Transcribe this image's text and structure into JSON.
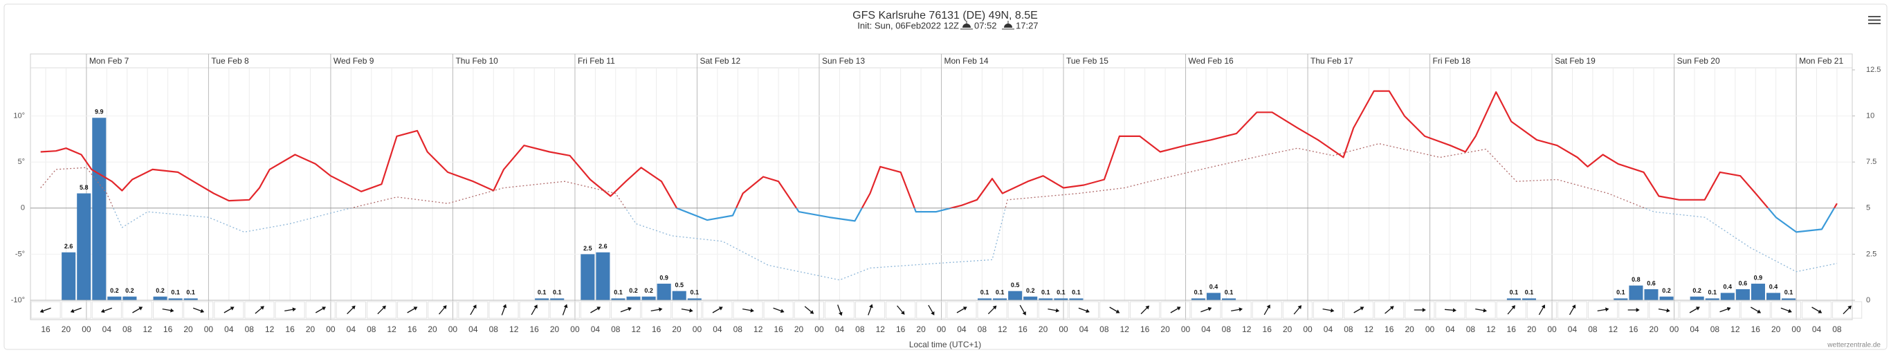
{
  "chart_data": {
    "type": "meteogram",
    "title": "GFS Karlsruhe 76131 (DE) 49N, 8.5E",
    "subtitle": "Init: Sun, 06Feb2022 12Z",
    "sunrise": "07:52",
    "sunset": "17:27",
    "x_label": "Local time (UTC+1)",
    "credit": "wetterzentrale.de",
    "xlim": [
      13,
      371
    ],
    "xticks": [
      {
        "value": 16,
        "label": "16"
      },
      {
        "value": 20,
        "label": "20"
      },
      {
        "value": 24,
        "label": "00"
      },
      {
        "value": 28,
        "label": "04"
      },
      {
        "value": 32,
        "label": "08"
      },
      {
        "value": 36,
        "label": "12"
      },
      {
        "value": 40,
        "label": "16"
      },
      {
        "value": 44,
        "label": "20"
      },
      {
        "value": 48,
        "label": "00"
      },
      {
        "value": 52,
        "label": "04"
      },
      {
        "value": 56,
        "label": "08"
      },
      {
        "value": 60,
        "label": "12"
      },
      {
        "value": 64,
        "label": "16"
      },
      {
        "value": 68,
        "label": "20"
      },
      {
        "value": 72,
        "label": "00"
      },
      {
        "value": 76,
        "label": "04"
      },
      {
        "value": 80,
        "label": "08"
      },
      {
        "value": 84,
        "label": "12"
      },
      {
        "value": 88,
        "label": "16"
      },
      {
        "value": 92,
        "label": "20"
      },
      {
        "value": 96,
        "label": "00"
      },
      {
        "value": 100,
        "label": "04"
      },
      {
        "value": 104,
        "label": "08"
      },
      {
        "value": 108,
        "label": "12"
      },
      {
        "value": 112,
        "label": "16"
      },
      {
        "value": 116,
        "label": "20"
      },
      {
        "value": 120,
        "label": "00"
      },
      {
        "value": 124,
        "label": "04"
      },
      {
        "value": 128,
        "label": "08"
      },
      {
        "value": 132,
        "label": "12"
      },
      {
        "value": 136,
        "label": "16"
      },
      {
        "value": 140,
        "label": "20"
      },
      {
        "value": 144,
        "label": "00"
      },
      {
        "value": 148,
        "label": "04"
      },
      {
        "value": 152,
        "label": "08"
      },
      {
        "value": 156,
        "label": "12"
      },
      {
        "value": 160,
        "label": "16"
      },
      {
        "value": 164,
        "label": "20"
      },
      {
        "value": 168,
        "label": "00"
      },
      {
        "value": 172,
        "label": "04"
      },
      {
        "value": 176,
        "label": "08"
      },
      {
        "value": 180,
        "label": "12"
      },
      {
        "value": 184,
        "label": "16"
      },
      {
        "value": 188,
        "label": "20"
      },
      {
        "value": 192,
        "label": "00"
      },
      {
        "value": 196,
        "label": "04"
      },
      {
        "value": 200,
        "label": "08"
      },
      {
        "value": 204,
        "label": "12"
      },
      {
        "value": 208,
        "label": "16"
      },
      {
        "value": 212,
        "label": "20"
      },
      {
        "value": 216,
        "label": "00"
      },
      {
        "value": 220,
        "label": "04"
      },
      {
        "value": 224,
        "label": "08"
      },
      {
        "value": 228,
        "label": "12"
      },
      {
        "value": 232,
        "label": "16"
      },
      {
        "value": 236,
        "label": "20"
      },
      {
        "value": 240,
        "label": "00"
      },
      {
        "value": 244,
        "label": "04"
      },
      {
        "value": 248,
        "label": "08"
      },
      {
        "value": 252,
        "label": "12"
      },
      {
        "value": 256,
        "label": "16"
      },
      {
        "value": 260,
        "label": "20"
      },
      {
        "value": 264,
        "label": "00"
      },
      {
        "value": 268,
        "label": "04"
      },
      {
        "value": 272,
        "label": "08"
      },
      {
        "value": 276,
        "label": "12"
      },
      {
        "value": 280,
        "label": "16"
      },
      {
        "value": 284,
        "label": "20"
      },
      {
        "value": 288,
        "label": "00"
      },
      {
        "value": 292,
        "label": "04"
      },
      {
        "value": 296,
        "label": "08"
      },
      {
        "value": 300,
        "label": "12"
      },
      {
        "value": 304,
        "label": "16"
      },
      {
        "value": 308,
        "label": "20"
      },
      {
        "value": 312,
        "label": "00"
      },
      {
        "value": 316,
        "label": "04"
      },
      {
        "value": 320,
        "label": "08"
      },
      {
        "value": 324,
        "label": "12"
      },
      {
        "value": 328,
        "label": "16"
      },
      {
        "value": 332,
        "label": "20"
      },
      {
        "value": 336,
        "label": "00"
      },
      {
        "value": 340,
        "label": "04"
      },
      {
        "value": 344,
        "label": "08"
      },
      {
        "value": 348,
        "label": "12"
      },
      {
        "value": 352,
        "label": "16"
      },
      {
        "value": 356,
        "label": "20"
      },
      {
        "value": 360,
        "label": "00"
      },
      {
        "value": 364,
        "label": "04"
      },
      {
        "value": 368,
        "label": "08"
      }
    ],
    "day_ticks": [
      {
        "value": 24,
        "label": "Mon Feb 7"
      },
      {
        "value": 48,
        "label": "Tue Feb 8"
      },
      {
        "value": 72,
        "label": "Wed Feb 9"
      },
      {
        "value": 96,
        "label": "Thu Feb 10"
      },
      {
        "value": 120,
        "label": "Fri Feb 11"
      },
      {
        "value": 144,
        "label": "Sat Feb 12"
      },
      {
        "value": 168,
        "label": "Sun Feb 13"
      },
      {
        "value": 192,
        "label": "Mon Feb 14"
      },
      {
        "value": 216,
        "label": "Tue Feb 15"
      },
      {
        "value": 240,
        "label": "Wed Feb 16"
      },
      {
        "value": 264,
        "label": "Thu Feb 17"
      },
      {
        "value": 288,
        "label": "Fri Feb 18"
      },
      {
        "value": 312,
        "label": "Sat Feb 19"
      },
      {
        "value": 336,
        "label": "Sun Feb 20"
      },
      {
        "value": 360,
        "label": "Mon Feb 21"
      }
    ],
    "ylim": [
      -10,
      15
    ],
    "yticks": [
      {
        "value": -10,
        "label": "-10°"
      },
      {
        "value": -5,
        "label": "-5°"
      },
      0,
      {
        "value": 5,
        "label": "5°"
      },
      {
        "value": 10,
        "label": "10°"
      }
    ],
    "y2lim": [
      0,
      12.5
    ],
    "y2ticks": [
      0,
      2.5,
      5,
      7.5,
      10,
      12.5
    ],
    "grid": true,
    "series": [
      {
        "type": "line",
        "color": "#e3262b",
        "color_below": "#3a9ad9",
        "line_style": "solid",
        "x": [
          15,
          18,
          20,
          23,
          25,
          29,
          31,
          33,
          37,
          42,
          45,
          49,
          52,
          56,
          58,
          60,
          65,
          69,
          72,
          78,
          82,
          85,
          89,
          91,
          95,
          100,
          104,
          106,
          110,
          115,
          119,
          123,
          127,
          130,
          133,
          137,
          140,
          146,
          151,
          153,
          157,
          160,
          164,
          170,
          175,
          178,
          180,
          184,
          187,
          191,
          196,
          199,
          202,
          204,
          209,
          212,
          216,
          220,
          224,
          227,
          231,
          235,
          240,
          245,
          250,
          254,
          257,
          262,
          266,
          271,
          273,
          277,
          280,
          283,
          287,
          292,
          295,
          297,
          301,
          304,
          309,
          313,
          317,
          319,
          322,
          325,
          330,
          333,
          337,
          342,
          345,
          349,
          352,
          356,
          360,
          365,
          368
        ],
        "values": [
          6.1,
          6.2,
          6.5,
          5.8,
          4.2,
          2.9,
          1.9,
          3.1,
          4.2,
          3.9,
          2.9,
          1.6,
          0.8,
          0.9,
          2.2,
          4.2,
          5.8,
          4.8,
          3.5,
          1.8,
          2.6,
          7.8,
          8.4,
          6.1,
          3.9,
          2.9,
          1.9,
          4.2,
          6.8,
          6.1,
          5.7,
          3.1,
          1.3,
          2.9,
          4.4,
          2.9,
          0,
          -1.3,
          -0.8,
          1.6,
          3.4,
          2.9,
          -0.4,
          -1,
          -1.4,
          1.6,
          4.5,
          3.9,
          -0.4,
          -0.4,
          0.3,
          0.9,
          3.2,
          1.6,
          2.9,
          3.5,
          2.2,
          2.5,
          3.1,
          7.8,
          7.8,
          6.1,
          6.8,
          7.4,
          8.1,
          10.4,
          10.4,
          8.7,
          7.4,
          5.5,
          8.7,
          12.7,
          12.7,
          10,
          7.8,
          6.8,
          6.1,
          7.8,
          12.6,
          9.4,
          7.4,
          6.8,
          5.5,
          4.5,
          5.8,
          4.8,
          3.9,
          1.3,
          0.9,
          0.9,
          3.9,
          3.5,
          1.6,
          -1,
          -2.6,
          -2.3,
          0.5
        ]
      },
      {
        "type": "line",
        "color": "#b06a6a",
        "color_below": "#8db6d8",
        "line_style": "dotted",
        "x": [
          15,
          18,
          24,
          28,
          31,
          36,
          48,
          55,
          64,
          73,
          85,
          95,
          106,
          118,
          128,
          132,
          139,
          149,
          158,
          172,
          178,
          191,
          202,
          205,
          219,
          228,
          233,
          243,
          255,
          262,
          269,
          278,
          290,
          299,
          305,
          313,
          323,
          332,
          342,
          351,
          360,
          368
        ],
        "values": [
          2.2,
          4.2,
          4.4,
          1.6,
          -2.1,
          -0.4,
          -1,
          -2.6,
          -1.7,
          -0.4,
          1.2,
          0.5,
          2.2,
          2.9,
          1.6,
          -1.7,
          -3,
          -3.6,
          -6.2,
          -7.8,
          -6.5,
          -6,
          -5.6,
          0.9,
          1.6,
          2.2,
          2.9,
          4.2,
          5.7,
          6.5,
          5.7,
          7,
          5.5,
          6.4,
          2.9,
          3.1,
          1.6,
          -0.4,
          -1,
          -4.3,
          -6.9,
          -6
        ]
      },
      {
        "type": "bar",
        "axis": "y2",
        "color": "#3f7cb8",
        "x": [
          22,
          25,
          28,
          31,
          34,
          40,
          43,
          46,
          115,
          118,
          124,
          127,
          130,
          133,
          136,
          139,
          142,
          145,
          202,
          205,
          208,
          211,
          214,
          217,
          220,
          244,
          247,
          250,
          306,
          309,
          327,
          330,
          333,
          336,
          342,
          345,
          348,
          351,
          354,
          357,
          360
        ],
        "values": [
          2.6,
          5.8,
          9.9,
          0.2,
          0.2,
          0.2,
          0.1,
          0.1,
          0.1,
          0.1,
          2.5,
          2.6,
          0.1,
          0.2,
          0.2,
          0.9,
          0.5,
          0.1,
          0.1,
          0.1,
          0.5,
          0.2,
          0.1,
          0.1,
          0.1,
          0.1,
          0.4,
          0.1,
          0.1,
          0.1,
          0.1,
          0.8,
          0.6,
          0.2,
          0.2,
          0.1,
          0.4,
          0.6,
          0.9,
          0.4,
          0.1
        ]
      }
    ],
    "wind": {
      "x": [
        16,
        22,
        28,
        34,
        40,
        46,
        52,
        58,
        64,
        70,
        76,
        82,
        88,
        94,
        100,
        106,
        112,
        118,
        124,
        130,
        136,
        142,
        148,
        154,
        160,
        166,
        172,
        178,
        184,
        190,
        196,
        202,
        208,
        214,
        220,
        226,
        232,
        238,
        244,
        250,
        256,
        262,
        268,
        274,
        280,
        286,
        292,
        298,
        304,
        310,
        316,
        322,
        328,
        334,
        340,
        346,
        352,
        358,
        364,
        370
      ],
      "heading": [
        250,
        250,
        250,
        60,
        100,
        110,
        60,
        50,
        80,
        60,
        45,
        45,
        60,
        40,
        30,
        20,
        30,
        20,
        60,
        70,
        80,
        100,
        60,
        100,
        110,
        130,
        160,
        20,
        140,
        150,
        60,
        45,
        150,
        100,
        110,
        120,
        45,
        60,
        70,
        80,
        30,
        40,
        100,
        60,
        50,
        90,
        95,
        100,
        40,
        30,
        30,
        80,
        90,
        100,
        60,
        70,
        120,
        110,
        120,
        45
      ]
    }
  }
}
